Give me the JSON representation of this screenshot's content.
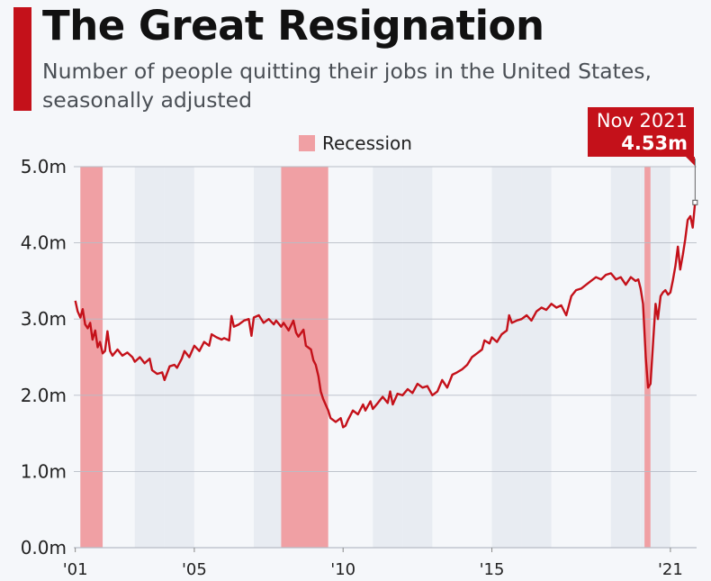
{
  "header": {
    "title": "The Great Resignation",
    "subtitle": "Number of people quitting their jobs in the United States, seasonally adjusted"
  },
  "legend": {
    "label": "Recession",
    "color": "#f0a0a4"
  },
  "callout": {
    "date": "Nov 2021",
    "value": "4.53m"
  },
  "colors": {
    "line": "#c4111a",
    "accent": "#c4111a",
    "recession": "#f0a0a4",
    "band_a": "#e8ecf2",
    "band_b": "#f5f7fa"
  },
  "chart_data": {
    "type": "line",
    "title": "The Great Resignation",
    "subtitle": "Number of people quitting their jobs in the United States, seasonally adjusted",
    "xlabel": "",
    "ylabel": "",
    "xlim": [
      2000.95,
      2021.88
    ],
    "ylim": [
      0,
      5.0
    ],
    "yticks": [
      0.0,
      1.0,
      2.0,
      3.0,
      4.0,
      5.0
    ],
    "ytick_labels": [
      "0.0m",
      "1.0m",
      "2.0m",
      "3.0m",
      "4.0m",
      "5.0m"
    ],
    "xticks": [
      2001,
      2005,
      2010,
      2015,
      2021
    ],
    "xtick_labels": [
      "'01",
      "'05",
      "'10",
      "'15",
      "'21"
    ],
    "grid": "horizontal",
    "legend_position": "top-center",
    "recessions": [
      {
        "label": "Recession",
        "start": 2001.17,
        "end": 2001.92
      },
      {
        "label": "Recession",
        "start": 2007.92,
        "end": 2009.5
      },
      {
        "label": "Recession",
        "start": 2020.13,
        "end": 2020.33
      }
    ],
    "series": [
      {
        "points": [
          [
            2001.0,
            3.24
          ],
          [
            2001.08,
            3.1
          ],
          [
            2001.17,
            3.02
          ],
          [
            2001.25,
            3.13
          ],
          [
            2001.33,
            2.93
          ],
          [
            2001.42,
            2.88
          ],
          [
            2001.5,
            2.95
          ],
          [
            2001.58,
            2.73
          ],
          [
            2001.67,
            2.85
          ],
          [
            2001.75,
            2.63
          ],
          [
            2001.83,
            2.7
          ],
          [
            2001.92,
            2.55
          ],
          [
            2002.0,
            2.58
          ],
          [
            2002.08,
            2.84
          ],
          [
            2002.17,
            2.58
          ],
          [
            2002.25,
            2.52
          ],
          [
            2002.42,
            2.6
          ],
          [
            2002.58,
            2.52
          ],
          [
            2002.75,
            2.56
          ],
          [
            2002.92,
            2.5
          ],
          [
            2003.0,
            2.44
          ],
          [
            2003.17,
            2.5
          ],
          [
            2003.33,
            2.42
          ],
          [
            2003.5,
            2.48
          ],
          [
            2003.58,
            2.33
          ],
          [
            2003.75,
            2.28
          ],
          [
            2003.92,
            2.3
          ],
          [
            2004.0,
            2.2
          ],
          [
            2004.17,
            2.38
          ],
          [
            2004.33,
            2.4
          ],
          [
            2004.42,
            2.36
          ],
          [
            2004.58,
            2.48
          ],
          [
            2004.67,
            2.58
          ],
          [
            2004.83,
            2.5
          ],
          [
            2005.0,
            2.65
          ],
          [
            2005.17,
            2.58
          ],
          [
            2005.33,
            2.7
          ],
          [
            2005.5,
            2.65
          ],
          [
            2005.58,
            2.8
          ],
          [
            2005.75,
            2.76
          ],
          [
            2005.92,
            2.73
          ],
          [
            2006.0,
            2.75
          ],
          [
            2006.17,
            2.72
          ],
          [
            2006.25,
            3.04
          ],
          [
            2006.33,
            2.9
          ],
          [
            2006.5,
            2.93
          ],
          [
            2006.67,
            2.98
          ],
          [
            2006.83,
            3.0
          ],
          [
            2006.92,
            2.78
          ],
          [
            2007.0,
            3.02
          ],
          [
            2007.17,
            3.05
          ],
          [
            2007.33,
            2.95
          ],
          [
            2007.5,
            3.0
          ],
          [
            2007.67,
            2.93
          ],
          [
            2007.75,
            2.98
          ],
          [
            2007.92,
            2.9
          ],
          [
            2008.0,
            2.95
          ],
          [
            2008.17,
            2.85
          ],
          [
            2008.33,
            2.98
          ],
          [
            2008.42,
            2.82
          ],
          [
            2008.5,
            2.77
          ],
          [
            2008.67,
            2.86
          ],
          [
            2008.75,
            2.65
          ],
          [
            2008.92,
            2.6
          ],
          [
            2009.0,
            2.46
          ],
          [
            2009.08,
            2.4
          ],
          [
            2009.17,
            2.25
          ],
          [
            2009.25,
            2.05
          ],
          [
            2009.33,
            1.95
          ],
          [
            2009.5,
            1.8
          ],
          [
            2009.58,
            1.7
          ],
          [
            2009.75,
            1.65
          ],
          [
            2009.92,
            1.7
          ],
          [
            2010.0,
            1.58
          ],
          [
            2010.08,
            1.6
          ],
          [
            2010.17,
            1.68
          ],
          [
            2010.33,
            1.8
          ],
          [
            2010.5,
            1.75
          ],
          [
            2010.67,
            1.88
          ],
          [
            2010.75,
            1.8
          ],
          [
            2010.92,
            1.92
          ],
          [
            2011.0,
            1.82
          ],
          [
            2011.17,
            1.9
          ],
          [
            2011.33,
            1.98
          ],
          [
            2011.5,
            1.9
          ],
          [
            2011.58,
            2.05
          ],
          [
            2011.67,
            1.88
          ],
          [
            2011.83,
            2.02
          ],
          [
            2012.0,
            2.0
          ],
          [
            2012.17,
            2.08
          ],
          [
            2012.33,
            2.03
          ],
          [
            2012.5,
            2.15
          ],
          [
            2012.67,
            2.1
          ],
          [
            2012.83,
            2.12
          ],
          [
            2013.0,
            2.0
          ],
          [
            2013.17,
            2.05
          ],
          [
            2013.33,
            2.2
          ],
          [
            2013.5,
            2.1
          ],
          [
            2013.67,
            2.27
          ],
          [
            2013.83,
            2.3
          ],
          [
            2014.0,
            2.34
          ],
          [
            2014.17,
            2.4
          ],
          [
            2014.33,
            2.5
          ],
          [
            2014.5,
            2.55
          ],
          [
            2014.67,
            2.6
          ],
          [
            2014.75,
            2.72
          ],
          [
            2014.92,
            2.68
          ],
          [
            2015.0,
            2.76
          ],
          [
            2015.17,
            2.7
          ],
          [
            2015.33,
            2.8
          ],
          [
            2015.5,
            2.85
          ],
          [
            2015.58,
            3.05
          ],
          [
            2015.67,
            2.95
          ],
          [
            2015.83,
            2.98
          ],
          [
            2016.0,
            3.0
          ],
          [
            2016.17,
            3.05
          ],
          [
            2016.33,
            2.98
          ],
          [
            2016.5,
            3.1
          ],
          [
            2016.67,
            3.15
          ],
          [
            2016.83,
            3.12
          ],
          [
            2017.0,
            3.2
          ],
          [
            2017.17,
            3.15
          ],
          [
            2017.33,
            3.18
          ],
          [
            2017.5,
            3.05
          ],
          [
            2017.67,
            3.3
          ],
          [
            2017.83,
            3.38
          ],
          [
            2018.0,
            3.4
          ],
          [
            2018.17,
            3.45
          ],
          [
            2018.33,
            3.5
          ],
          [
            2018.5,
            3.55
          ],
          [
            2018.67,
            3.52
          ],
          [
            2018.83,
            3.58
          ],
          [
            2019.0,
            3.6
          ],
          [
            2019.17,
            3.52
          ],
          [
            2019.33,
            3.55
          ],
          [
            2019.5,
            3.45
          ],
          [
            2019.67,
            3.55
          ],
          [
            2019.83,
            3.5
          ],
          [
            2019.92,
            3.52
          ],
          [
            2020.0,
            3.4
          ],
          [
            2020.08,
            3.2
          ],
          [
            2020.17,
            2.5
          ],
          [
            2020.25,
            2.1
          ],
          [
            2020.33,
            2.15
          ],
          [
            2020.42,
            2.7
          ],
          [
            2020.5,
            3.2
          ],
          [
            2020.58,
            3.0
          ],
          [
            2020.67,
            3.3
          ],
          [
            2020.75,
            3.35
          ],
          [
            2020.83,
            3.38
          ],
          [
            2020.92,
            3.32
          ],
          [
            2021.0,
            3.35
          ],
          [
            2021.08,
            3.5
          ],
          [
            2021.17,
            3.7
          ],
          [
            2021.25,
            3.95
          ],
          [
            2021.33,
            3.65
          ],
          [
            2021.42,
            3.85
          ],
          [
            2021.5,
            4.05
          ],
          [
            2021.58,
            4.3
          ],
          [
            2021.67,
            4.35
          ],
          [
            2021.75,
            4.2
          ],
          [
            2021.83,
            4.53
          ]
        ]
      }
    ],
    "annotation": {
      "x": 2021.83,
      "y": 4.53,
      "label_date": "Nov 2021",
      "label_value": "4.53m"
    }
  }
}
